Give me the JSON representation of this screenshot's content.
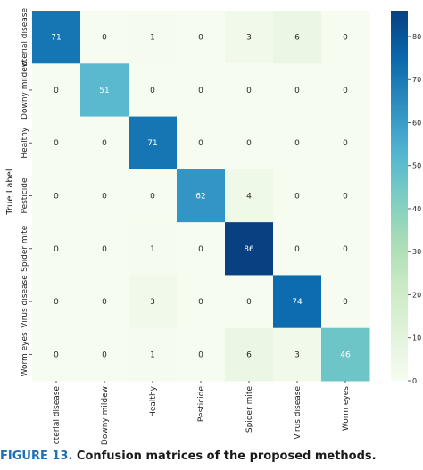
{
  "chart_data": {
    "type": "heatmap",
    "title": "",
    "ylabel": "True Label",
    "xlabel": "",
    "rows": [
      "Bacterial disease",
      "Downy mildew",
      "Healthy",
      "Pesticide",
      "Spider mite",
      "Virus disease",
      "Worm eyes"
    ],
    "columns": [
      "Bacterial disease",
      "Downy mildew",
      "Healthy",
      "Pesticide",
      "Spider mite",
      "Virus disease",
      "Worm eyes"
    ],
    "row_tick_labels": [
      "cterial disease",
      "Downy mildew",
      "Healthy",
      "Pesticide",
      "Spider mite",
      "Virus disease",
      "Worm eyes"
    ],
    "col_tick_labels": [
      "cterial disease",
      "Downy mildew",
      "Healthy",
      "Pesticide",
      "Spider mite",
      "Virus disease",
      "Worm eyes"
    ],
    "values": [
      [
        71,
        0,
        1,
        0,
        3,
        6,
        0
      ],
      [
        0,
        51,
        0,
        0,
        0,
        0,
        0
      ],
      [
        0,
        0,
        71,
        0,
        0,
        0,
        0
      ],
      [
        0,
        0,
        0,
        62,
        4,
        0,
        0
      ],
      [
        0,
        0,
        1,
        0,
        86,
        0,
        0
      ],
      [
        0,
        0,
        3,
        0,
        0,
        74,
        0
      ],
      [
        0,
        0,
        1,
        0,
        6,
        3,
        46
      ]
    ],
    "colormap": "GnBu",
    "vmin": 0,
    "vmax": 86,
    "colorbar_ticks": [
      0,
      10,
      20,
      30,
      40,
      50,
      60,
      70,
      80
    ],
    "colorbar_tick_labels": [
      "0",
      "10",
      "20",
      "30",
      "40",
      "50",
      "60",
      "70",
      "80"
    ],
    "grid": false,
    "legend": "colorbar-right"
  },
  "caption": {
    "label": "FIGURE 13.",
    "text": "Confusion matrices of the proposed methods."
  },
  "colors": {
    "caption_label": "#1f6fb4",
    "text_light": "#ffffff",
    "text_dark": "#262626"
  }
}
